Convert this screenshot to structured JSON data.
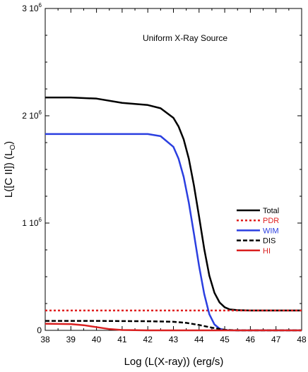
{
  "chart_data": {
    "type": "line",
    "annotation": "Uniform X-Ray Source",
    "xlabel": "Log (L(X-ray)) (erg/s)",
    "ylabel": "L([C II]) (L",
    "ylabel_sub": "O",
    "ylabel_close": ")",
    "xlim": [
      38,
      48
    ],
    "ylim": [
      0,
      3000000
    ],
    "x_ticks": [
      38,
      39,
      40,
      41,
      42,
      43,
      44,
      45,
      46,
      47,
      48
    ],
    "y_ticks": [
      {
        "value": 0,
        "mantissa": "0",
        "exp": ""
      },
      {
        "value": 1000000,
        "mantissa": "1 10",
        "exp": "6"
      },
      {
        "value": 2000000,
        "mantissa": "2 10",
        "exp": "6"
      },
      {
        "value": 3000000,
        "mantissa": "3 10",
        "exp": "6"
      }
    ],
    "legend_position": "right",
    "series": [
      {
        "name": "Total",
        "color": "#000000",
        "style": "solid",
        "x": [
          38,
          39,
          40,
          41,
          41.5,
          42,
          42.5,
          43,
          43.2,
          43.4,
          43.6,
          43.8,
          44,
          44.2,
          44.4,
          44.6,
          44.8,
          45,
          45.2,
          45.5,
          46,
          47,
          48
        ],
        "y": [
          2170000,
          2170000,
          2160000,
          2120000,
          2110000,
          2100000,
          2070000,
          1980000,
          1900000,
          1780000,
          1600000,
          1350000,
          1060000,
          760000,
          510000,
          350000,
          260000,
          215000,
          195000,
          188000,
          185000,
          185000,
          185000
        ]
      },
      {
        "name": "PDR",
        "color": "#e02020",
        "style": "dotted",
        "x": [
          38,
          48
        ],
        "y": [
          185000,
          185000
        ]
      },
      {
        "name": "WIM",
        "color": "#2b3fe0",
        "style": "solid",
        "x": [
          38,
          40,
          42,
          42.5,
          43,
          43.2,
          43.4,
          43.6,
          43.8,
          44,
          44.2,
          44.4,
          44.6,
          44.8,
          45,
          45.2,
          45.5,
          46,
          48
        ],
        "y": [
          1830000,
          1830000,
          1830000,
          1810000,
          1710000,
          1600000,
          1430000,
          1190000,
          900000,
          600000,
          340000,
          150000,
          55000,
          15000,
          4000,
          1000,
          0,
          0,
          0
        ]
      },
      {
        "name": "DIS",
        "color": "#000000",
        "style": "dashed",
        "x": [
          38,
          40,
          42,
          43,
          43.5,
          44,
          44.5,
          45,
          45.5,
          46,
          48
        ],
        "y": [
          88000,
          88000,
          85000,
          80000,
          70000,
          50000,
          25000,
          5000,
          0,
          0,
          0
        ]
      },
      {
        "name": "HI",
        "color": "#d92020",
        "style": "solid",
        "x": [
          38,
          39,
          39.5,
          40,
          40.5,
          41,
          42,
          43,
          48
        ],
        "y": [
          62000,
          58000,
          48000,
          30000,
          12000,
          3000,
          0,
          0,
          0
        ]
      }
    ]
  }
}
